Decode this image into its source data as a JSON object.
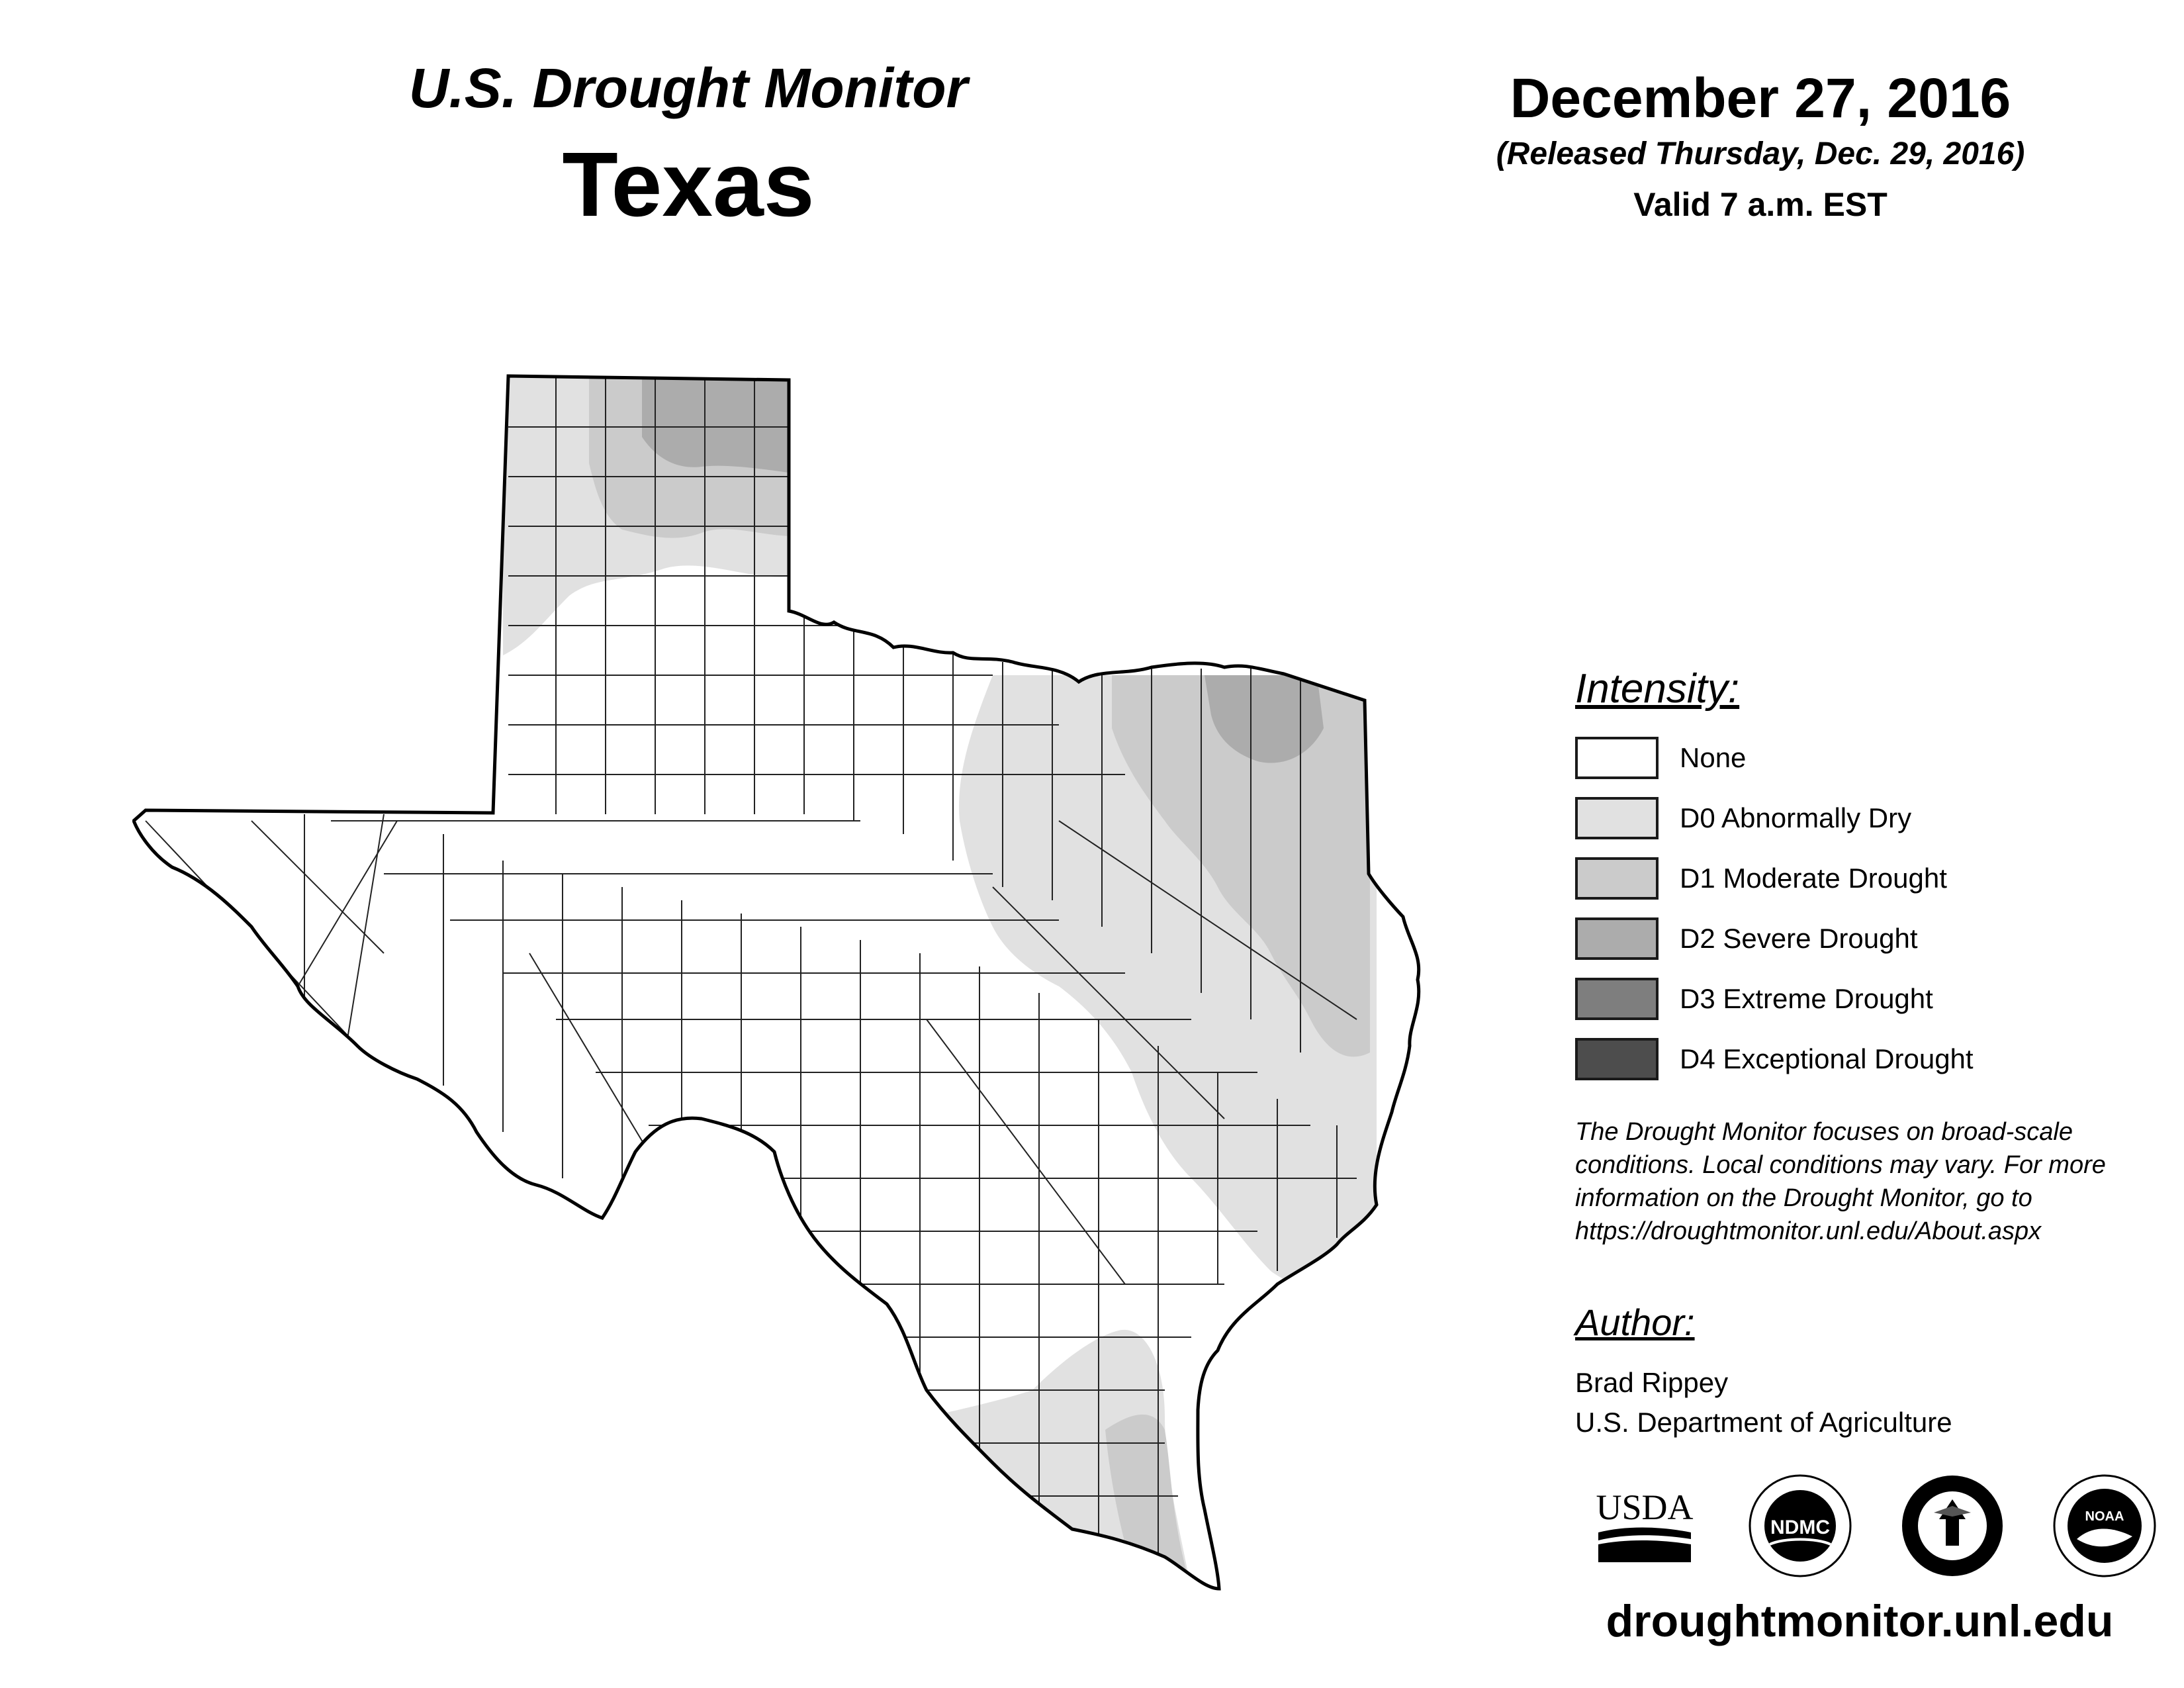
{
  "header": {
    "subtitle": "U.S. Drought Monitor",
    "state": "Texas",
    "date": "December 27, 2016",
    "released": "(Released Thursday, Dec. 29, 2016)",
    "valid": "Valid 7 a.m. EST"
  },
  "legend": {
    "title": "Intensity:",
    "items": [
      {
        "label": "None",
        "color": "#ffffff"
      },
      {
        "label": "D0 Abnormally Dry",
        "color": "#e1e1e1"
      },
      {
        "label": "D1 Moderate Drought",
        "color": "#cbcbcb"
      },
      {
        "label": "D2 Severe Drought",
        "color": "#acacac"
      },
      {
        "label": "D3 Extreme Drought",
        "color": "#7e7e7e"
      },
      {
        "label": "D4 Exceptional Drought",
        "color": "#4d4d4d"
      }
    ]
  },
  "note": "The Drought Monitor focuses on broad-scale conditions. Local conditions may vary. For more information on the Drought Monitor, go to https://droughtmonitor.unl.edu/About.aspx",
  "author": {
    "title": "Author:",
    "name": "Brad Rippey",
    "org": "U.S. Department of Agriculture"
  },
  "logos": {
    "usda": "USDA",
    "ndmc": "NDMC",
    "noaa": "NOAA"
  },
  "website": "droughtmonitor.unl.edu",
  "map": {
    "region": "Texas",
    "icons": [
      "usda-logo",
      "ndmc-logo",
      "commerce-seal",
      "noaa-logo"
    ]
  }
}
